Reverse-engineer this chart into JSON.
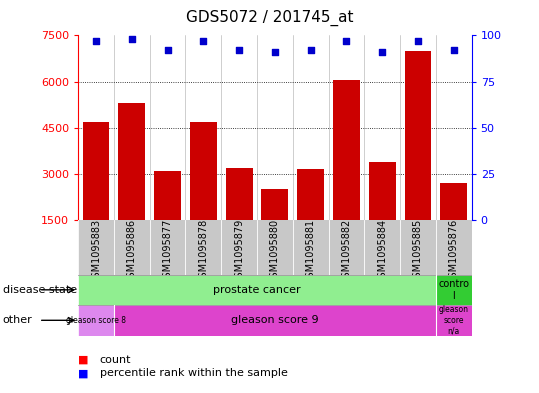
{
  "title": "GDS5072 / 201745_at",
  "samples": [
    "GSM1095883",
    "GSM1095886",
    "GSM1095877",
    "GSM1095878",
    "GSM1095879",
    "GSM1095880",
    "GSM1095881",
    "GSM1095882",
    "GSM1095884",
    "GSM1095885",
    "GSM1095876"
  ],
  "counts": [
    4700,
    5300,
    3100,
    4700,
    3200,
    2500,
    3150,
    6050,
    3400,
    7000,
    2700
  ],
  "percentile_ranks": [
    97,
    98,
    92,
    97,
    92,
    91,
    92,
    97,
    91,
    97,
    92
  ],
  "ylim_left": [
    1500,
    7500
  ],
  "ylim_right": [
    0,
    100
  ],
  "yticks_left": [
    1500,
    3000,
    4500,
    6000,
    7500
  ],
  "yticks_right": [
    0,
    25,
    50,
    75,
    100
  ],
  "bar_color": "#cc0000",
  "dot_color": "#0000cc",
  "bar_bottom": 1500,
  "prostate_cancer_color": "#90ee90",
  "control_color": "#33cc33",
  "gleason8_color": "#dd88ee",
  "gleason9_color": "#dd44cc",
  "gleasonna_color": "#dd44cc",
  "xtick_bg_color": "#c8c8c8",
  "bg_color": "#ffffff",
  "legend_count": "count",
  "legend_percentile": "percentile rank within the sample",
  "gridline_ticks": [
    3000,
    4500,
    6000
  ],
  "row_label_disease": "disease state",
  "row_label_other": "other"
}
